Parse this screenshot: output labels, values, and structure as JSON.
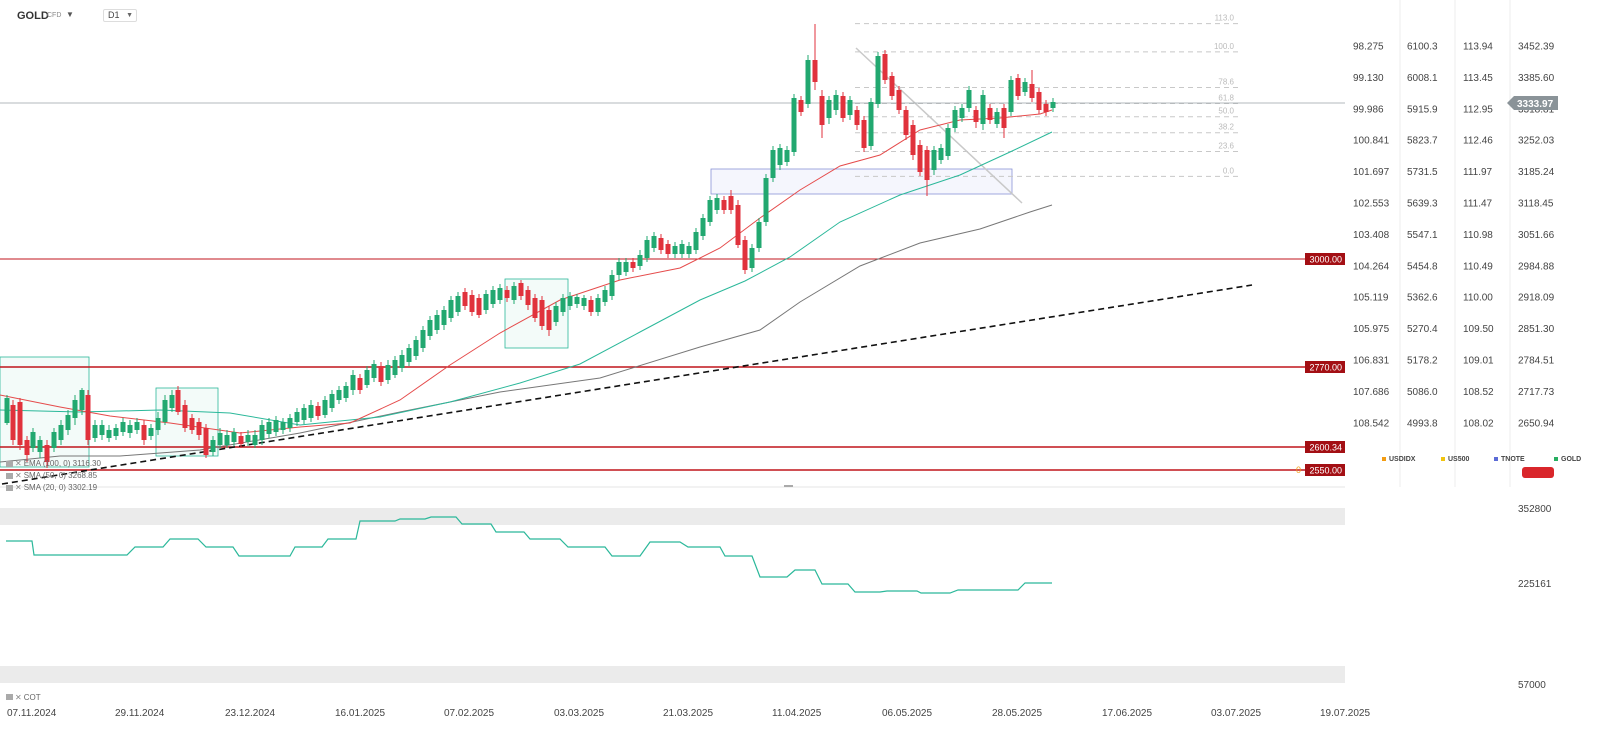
{
  "header": {
    "symbol": "GOLD",
    "symbol_sub": "CFD",
    "timeframe": "D1"
  },
  "indicators": {
    "ema": "EMA (100, 0) 3116.30",
    "sma1": "SMA (50, 0) 3268.85",
    "sma2": "SMA (20, 0) 3302.19",
    "cot": "COT"
  },
  "axis_headers": [
    {
      "label": "USDIDX",
      "color": "#f39c12"
    },
    {
      "label": "US500",
      "color": "#f1c40f"
    },
    {
      "label": "TNOTE",
      "color": "#5b6bd6"
    },
    {
      "label": "GOLD",
      "color": "#27ae60"
    }
  ],
  "colors": {
    "up": "#22a870",
    "down": "#e0323c",
    "ema": "#e54b4b",
    "sma50": "#2bb89a",
    "sma100": "#777777",
    "level": "#c0151c",
    "cot": "#2bb89a"
  },
  "chart_data": {
    "type": "candlestick",
    "title": "GOLD",
    "x_dates": [
      "07.11.2024",
      "29.11.2024",
      "23.12.2024",
      "16.01.2025",
      "07.02.2025",
      "03.03.2025",
      "21.03.2025",
      "11.04.2025",
      "06.05.2025",
      "28.05.2025",
      "17.06.2025",
      "03.07.2025",
      "19.07.2025"
    ],
    "price_axis": [
      3452.39,
      3385.6,
      3318.81,
      3252.03,
      3185.24,
      3118.45,
      3051.66,
      2984.88,
      2918.09,
      2851.3,
      2784.51,
      2717.73,
      2650.94
    ],
    "price_axis_labels": [
      "3452.39",
      "3385.60",
      "3318.81",
      "3252.03",
      "3185.24",
      "3118.45",
      "3051.66",
      "2984.88",
      "2918.09",
      "2851.30",
      "2784.51",
      "2717.73",
      "2650.94"
    ],
    "usdidx_axis": [
      "98.275",
      "99.130",
      "99.986",
      "100.841",
      "101.697",
      "102.553",
      "103.408",
      "104.264",
      "105.119",
      "105.975",
      "106.831",
      "107.686",
      "108.542"
    ],
    "us500_axis": [
      "6100.3",
      "6008.1",
      "5915.9",
      "5823.7",
      "5731.5",
      "5639.3",
      "5547.1",
      "5454.8",
      "5362.6",
      "5270.4",
      "5178.2",
      "5086.0",
      "4993.8"
    ],
    "tnote_axis": [
      "113.94",
      "113.45",
      "112.95",
      "112.46",
      "111.97",
      "111.47",
      "110.98",
      "110.49",
      "110.00",
      "109.50",
      "109.01",
      "108.52",
      "108.02"
    ],
    "current_price": "3333.97",
    "horizontal_levels": [
      {
        "value": 3000.0,
        "label": "3000.00"
      },
      {
        "value": 2770.0,
        "label": "2770.00"
      },
      {
        "value": 2600.34,
        "label": "2600.34"
      },
      {
        "value": 2550.0,
        "label": "2550.00"
      }
    ],
    "fibonacci": [
      {
        "label": "113.0",
        "value": 3500
      },
      {
        "label": "100.0",
        "value": 3440
      },
      {
        "label": "78.6",
        "value": 3364
      },
      {
        "label": "61.8",
        "value": 3330
      },
      {
        "label": "50.0",
        "value": 3302
      },
      {
        "label": "38.2",
        "value": 3268
      },
      {
        "label": "23.6",
        "value": 3228
      },
      {
        "label": "0.0",
        "value": 3175
      }
    ],
    "cot_axis": [
      "352800",
      "225161",
      "57000"
    ]
  }
}
